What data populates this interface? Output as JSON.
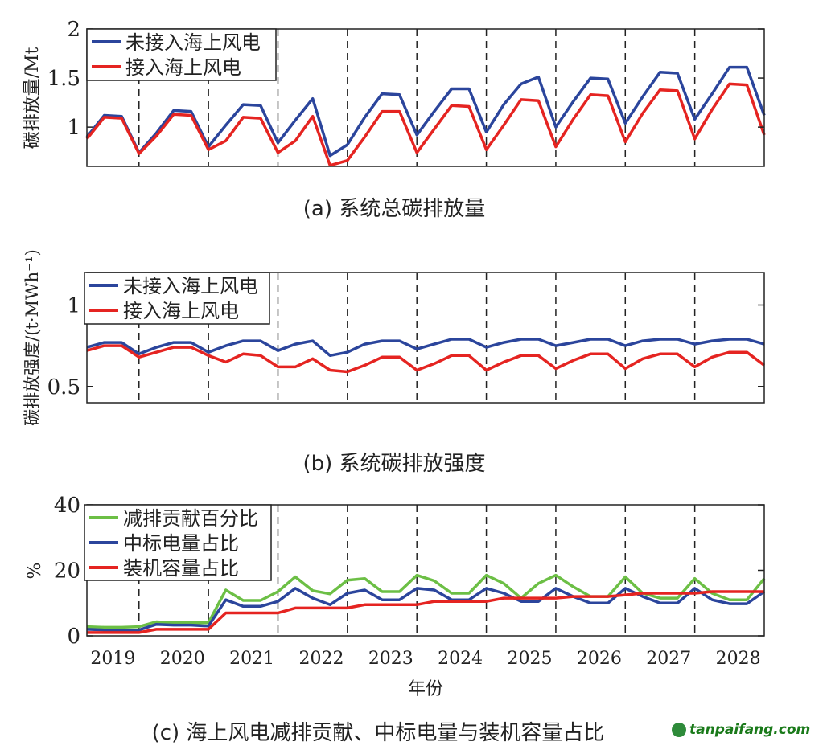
{
  "chart_data": [
    {
      "type": "line",
      "title": "(a) 系统总碳排放量",
      "xlabel": "",
      "ylabel": "碳排放量/Mt",
      "ylim": [
        0.6,
        2
      ],
      "yticks": [
        "1",
        "1.5",
        "2"
      ],
      "ytick_values": [
        1,
        1.5,
        2
      ],
      "legend_placement": "top-left",
      "x_points_per_year": 4,
      "series": [
        {
          "name": "未接入海上风电",
          "color": "#2b459c",
          "values": [
            0.9,
            1.12,
            1.11,
            0.74,
            0.94,
            1.17,
            1.16,
            0.8,
            1.02,
            1.23,
            1.22,
            0.84,
            1.07,
            1.29,
            0.71,
            0.82,
            1.1,
            1.34,
            1.33,
            0.92,
            1.16,
            1.39,
            1.39,
            0.95,
            1.23,
            1.44,
            1.51,
            1.0,
            1.26,
            1.5,
            1.49,
            1.04,
            1.31,
            1.56,
            1.55,
            1.08,
            1.34,
            1.61,
            1.61,
            1.12
          ]
        },
        {
          "name": "接入海上风电",
          "color": "#e52421",
          "values": [
            0.88,
            1.1,
            1.09,
            0.73,
            0.91,
            1.13,
            1.12,
            0.77,
            0.86,
            1.1,
            1.09,
            0.74,
            0.86,
            1.11,
            0.61,
            0.66,
            0.9,
            1.16,
            1.16,
            0.74,
            0.98,
            1.22,
            1.21,
            0.77,
            1.02,
            1.28,
            1.27,
            0.8,
            1.08,
            1.33,
            1.32,
            0.85,
            1.14,
            1.38,
            1.37,
            0.88,
            1.18,
            1.44,
            1.43,
            0.92
          ]
        }
      ]
    },
    {
      "type": "line",
      "title": "(b) 系统碳排放强度",
      "xlabel": "",
      "ylabel": "碳排放强度/(t·MWh⁻¹)",
      "ylim": [
        0.4,
        1.2
      ],
      "yticks": [
        "0.5",
        "1"
      ],
      "ytick_values": [
        0.5,
        1
      ],
      "legend_placement": "top-left",
      "series": [
        {
          "name": "未接入海上风电",
          "color": "#2b459c",
          "values": [
            0.74,
            0.77,
            0.77,
            0.7,
            0.74,
            0.77,
            0.77,
            0.71,
            0.75,
            0.78,
            0.78,
            0.72,
            0.76,
            0.78,
            0.69,
            0.71,
            0.76,
            0.78,
            0.78,
            0.73,
            0.76,
            0.79,
            0.79,
            0.74,
            0.77,
            0.79,
            0.79,
            0.75,
            0.77,
            0.79,
            0.79,
            0.75,
            0.78,
            0.79,
            0.79,
            0.76,
            0.78,
            0.79,
            0.79,
            0.76
          ]
        },
        {
          "name": "接入海上风电",
          "color": "#e52421",
          "values": [
            0.72,
            0.75,
            0.75,
            0.68,
            0.71,
            0.74,
            0.74,
            0.69,
            0.65,
            0.7,
            0.69,
            0.62,
            0.62,
            0.67,
            0.6,
            0.59,
            0.63,
            0.68,
            0.68,
            0.6,
            0.64,
            0.69,
            0.69,
            0.6,
            0.65,
            0.69,
            0.69,
            0.61,
            0.66,
            0.7,
            0.7,
            0.61,
            0.67,
            0.7,
            0.7,
            0.62,
            0.68,
            0.71,
            0.71,
            0.63
          ]
        }
      ]
    },
    {
      "type": "line",
      "title": "(c) 海上风电减排贡献、中标电量与装机容量占比",
      "xlabel": "年份",
      "ylabel": "%",
      "ylim": [
        0,
        40
      ],
      "yticks": [
        "0",
        "20",
        "40"
      ],
      "ytick_values": [
        0,
        20,
        40
      ],
      "xticks": [
        "2019",
        "2020",
        "2021",
        "2022",
        "2023",
        "2024",
        "2025",
        "2026",
        "2027",
        "2028"
      ],
      "legend_placement": "top-left",
      "series": [
        {
          "name": "减排贡献百分比",
          "color": "#6cbf45",
          "values": [
            2.8,
            2.6,
            2.6,
            2.8,
            4.3,
            4.0,
            4.0,
            4.0,
            14,
            10.8,
            10.8,
            13.5,
            18,
            13.8,
            12.8,
            17,
            17.5,
            13.5,
            13.5,
            18.5,
            16.8,
            13,
            13,
            18.5,
            16,
            11.5,
            16,
            18.5,
            15,
            12,
            12,
            18,
            13,
            11.5,
            11.5,
            17.5,
            13,
            11,
            11,
            17.5
          ]
        },
        {
          "name": "中标电量占比",
          "color": "#2b459c",
          "values": [
            2,
            1.8,
            1.8,
            1.8,
            3.5,
            3.3,
            3.3,
            3,
            11,
            9,
            9,
            10.5,
            14.5,
            11.5,
            9.5,
            13,
            14,
            11,
            11,
            14.5,
            14,
            11,
            11,
            14.5,
            13,
            10.5,
            10.5,
            14.5,
            12,
            10,
            10,
            14.5,
            12,
            10,
            10,
            14.5,
            11,
            9.8,
            9.8,
            13.5
          ]
        },
        {
          "name": "装机容量占比",
          "color": "#e52421",
          "values": [
            1,
            1,
            1,
            1,
            2,
            2,
            2,
            2,
            7,
            7,
            7,
            7,
            8.5,
            8.5,
            8.5,
            8.5,
            9.5,
            9.5,
            9.5,
            9.5,
            10.5,
            10.5,
            10.5,
            10.5,
            11.5,
            11.5,
            11.5,
            11.5,
            12,
            12,
            12,
            12.5,
            13,
            13,
            13,
            13,
            13.5,
            13.5,
            13.5,
            13.5
          ]
        }
      ]
    }
  ],
  "watermark": "tanpaifang.com"
}
